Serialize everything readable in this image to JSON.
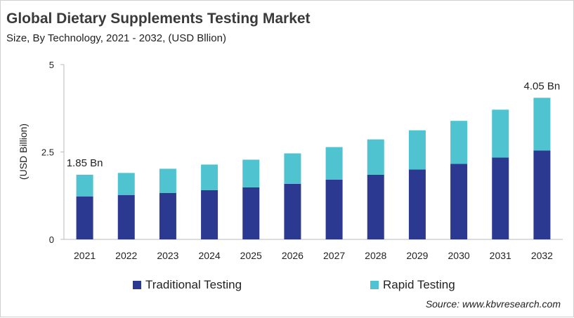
{
  "chart_data": {
    "type": "bar",
    "stacked": true,
    "title": "Global Dietary Supplements Testing Market",
    "subtitle": "Size, By Technology, 2021 - 2032, (USD Bllion)",
    "xlabel": "",
    "ylabel": "(USD Billion)",
    "ylim": [
      0,
      5
    ],
    "yticks": [
      "0",
      "2.5",
      "5"
    ],
    "grid": false,
    "legend_position": "bottom",
    "categories": [
      "2021",
      "2022",
      "2023",
      "2024",
      "2025",
      "2026",
      "2027",
      "2028",
      "2029",
      "2030",
      "2031",
      "2032"
    ],
    "series": [
      {
        "name": "Traditional Testing",
        "color": "#2b3990",
        "values": [
          1.23,
          1.27,
          1.33,
          1.41,
          1.49,
          1.59,
          1.71,
          1.85,
          2.0,
          2.16,
          2.34,
          2.54
        ]
      },
      {
        "name": "Rapid Testing",
        "color": "#4fc3cf",
        "values": [
          0.62,
          0.63,
          0.69,
          0.73,
          0.79,
          0.87,
          0.93,
          1.01,
          1.12,
          1.23,
          1.37,
          1.51
        ]
      }
    ],
    "annotations": [
      {
        "category": "2021",
        "text": "1.85 Bn"
      },
      {
        "category": "2032",
        "text": "4.05 Bn"
      }
    ]
  },
  "source": "Source: www.kbvresearch.com"
}
